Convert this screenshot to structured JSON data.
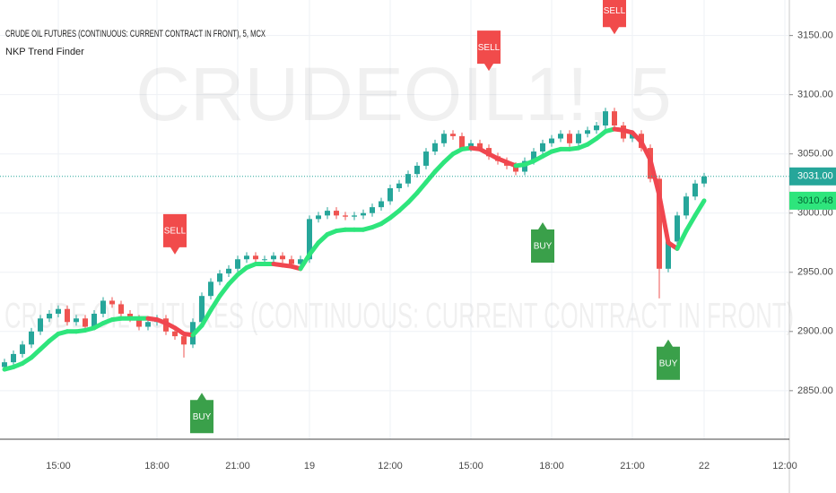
{
  "chart_data": {
    "type": "candlestick",
    "title": "CRUDE OIL FUTURES (CONTINUOUS: CURRENT CONTRACT IN FRONT), 5, MCX",
    "subtitle": "NKP Trend Finder",
    "watermark": "CRUDEOIL1!, 5",
    "watermark_subtitle": "CRUDE OIL FUTURES (CONTINUOUS: CURRENT CONTRACT IN FRONT)",
    "categories": [
      null,
      null,
      null,
      null,
      null,
      null,
      "15:00",
      null,
      null,
      null,
      null,
      null,
      null,
      null,
      null,
      null,
      null,
      "18:00",
      null,
      null,
      null,
      null,
      null,
      null,
      null,
      null,
      "21:00",
      null,
      null,
      null,
      null,
      null,
      null,
      null,
      "19",
      null,
      null,
      null,
      null,
      null,
      null,
      null,
      null,
      "12:00",
      null,
      null,
      null,
      null,
      null,
      null,
      null,
      null,
      "15:00",
      null,
      null,
      null,
      null,
      null,
      null,
      null,
      null,
      "18:00",
      null,
      null,
      null,
      null,
      null,
      null,
      null,
      null,
      "21:00",
      null,
      null,
      null,
      null,
      null,
      null,
      null,
      "22",
      null,
      null,
      null,
      null,
      null,
      null,
      null,
      null,
      "12:00",
      null
    ],
    "open": [
      2870,
      2874,
      2881,
      2889,
      2900,
      2911,
      2915,
      2919,
      2908,
      2911,
      2904,
      2915,
      2926,
      2923,
      2915,
      2911,
      2904,
      2908,
      2911,
      2900,
      2896,
      2889,
      2908,
      2930,
      2942,
      2949,
      2953,
      2961,
      2964,
      2961,
      2961,
      2964,
      2961,
      2957,
      2961,
      2995,
      2998,
      3002,
      2998,
      2997,
      2998,
      3000,
      3005,
      3010,
      3021,
      3025,
      3033,
      3040,
      3052,
      3059,
      3067,
      3065,
      3055,
      3059,
      3055,
      3048,
      3044,
      3040,
      3035,
      3044,
      3052,
      3059,
      3063,
      3067,
      3059,
      3067,
      3070,
      3074,
      3086,
      3074,
      3063,
      3067,
      3055,
      3029,
      2953,
      2976,
      2998,
      3014,
      3025,
      null,
      null,
      null,
      null,
      null,
      null,
      null,
      null,
      null,
      null
    ],
    "high": [
      2877,
      2884,
      2892,
      2903,
      2914,
      2918,
      2922,
      2922,
      2914,
      2914,
      2918,
      2929,
      2929,
      2926,
      2918,
      2914,
      2911,
      2914,
      2914,
      2903,
      2899,
      2911,
      2933,
      2945,
      2952,
      2956,
      2964,
      2967,
      2967,
      2964,
      2967,
      2967,
      2964,
      2964,
      2998,
      3001,
      3005,
      3005,
      3001,
      3001,
      3003,
      3008,
      3013,
      3024,
      3028,
      3036,
      3043,
      3055,
      3062,
      3070,
      3070,
      3068,
      3062,
      3062,
      3058,
      3051,
      3047,
      3043,
      3047,
      3055,
      3062,
      3066,
      3070,
      3070,
      3070,
      3073,
      3077,
      3089,
      3089,
      3077,
      3070,
      3070,
      3058,
      3032,
      2979,
      3001,
      3017,
      3028,
      3034,
      null,
      null,
      null,
      null,
      null,
      null,
      null,
      null,
      null,
      null
    ],
    "low": [
      2867,
      2871,
      2878,
      2886,
      2897,
      2908,
      2912,
      2905,
      2905,
      2901,
      2901,
      2912,
      2920,
      2912,
      2908,
      2901,
      2901,
      2905,
      2897,
      2893,
      2878,
      2886,
      2905,
      2927,
      2939,
      2946,
      2950,
      2958,
      2958,
      2958,
      2958,
      2958,
      2954,
      2954,
      2958,
      2992,
      2995,
      2995,
      2994,
      2994,
      2995,
      2997,
      3002,
      3007,
      3018,
      3022,
      3030,
      3037,
      3049,
      3056,
      3062,
      3052,
      3052,
      3052,
      3045,
      3041,
      3037,
      3032,
      3032,
      3041,
      3049,
      3056,
      3060,
      3056,
      3056,
      3064,
      3067,
      3071,
      3071,
      3060,
      3060,
      3052,
      3026,
      2928,
      2950,
      2973,
      2995,
      3011,
      3022,
      null,
      null,
      null,
      null,
      null,
      null,
      null,
      null,
      null,
      null
    ],
    "close": [
      2874,
      2881,
      2889,
      2900,
      2911,
      2915,
      2919,
      2908,
      2911,
      2904,
      2915,
      2926,
      2923,
      2915,
      2911,
      2904,
      2908,
      2911,
      2900,
      2896,
      2889,
      2908,
      2930,
      2942,
      2949,
      2953,
      2961,
      2964,
      2961,
      2961,
      2964,
      2961,
      2957,
      2961,
      2995,
      2998,
      3002,
      2998,
      2997,
      2998,
      3000,
      3005,
      3010,
      3021,
      3025,
      3033,
      3040,
      3052,
      3059,
      3067,
      3065,
      3055,
      3059,
      3055,
      3048,
      3044,
      3040,
      3035,
      3044,
      3052,
      3059,
      3063,
      3067,
      3059,
      3067,
      3070,
      3074,
      3086,
      3074,
      3063,
      3067,
      3055,
      3029,
      2953,
      2976,
      2998,
      3014,
      3025,
      3031,
      null,
      null,
      null,
      null,
      null,
      null,
      null,
      null,
      null,
      null
    ],
    "trend": [
      2868,
      2870,
      2873,
      2878,
      2885,
      2892,
      2898,
      2900,
      2900,
      2901,
      2903,
      2907,
      2910,
      2911,
      2911,
      2911,
      2911,
      2910,
      2907,
      2903,
      2898,
      2897,
      2905,
      2918,
      2930,
      2940,
      2948,
      2954,
      2957,
      2957,
      2957,
      2956,
      2955,
      2953,
      2965,
      2975,
      2982,
      2985,
      2986,
      2986,
      2986,
      2988,
      2991,
      2996,
      3002,
      3009,
      3017,
      3026,
      3035,
      3043,
      3050,
      3054,
      3055,
      3054,
      3050,
      3046,
      3043,
      3040,
      3041,
      3044,
      3048,
      3052,
      3054,
      3054,
      3055,
      3058,
      3063,
      3069,
      3071,
      3070,
      3068,
      3060,
      3045,
      3015,
      2975,
      2970,
      2985,
      2998,
      3010.48,
      null,
      null,
      null,
      null,
      null,
      null,
      null,
      null,
      null,
      null
    ],
    "signals": [
      null,
      null,
      null,
      null,
      null,
      null,
      null,
      null,
      null,
      null,
      null,
      null,
      null,
      null,
      null,
      null,
      null,
      null,
      null,
      "SELL",
      null,
      null,
      "BUY",
      null,
      null,
      null,
      null,
      null,
      null,
      null,
      null,
      null,
      null,
      null,
      null,
      null,
      null,
      null,
      null,
      null,
      null,
      null,
      null,
      null,
      null,
      null,
      null,
      null,
      null,
      null,
      null,
      null,
      null,
      null,
      "SELL",
      null,
      null,
      null,
      null,
      null,
      "BUY",
      null,
      null,
      null,
      null,
      null,
      null,
      null,
      "SELL",
      null,
      null,
      null,
      null,
      null,
      "BUY",
      null,
      null,
      null,
      null,
      null,
      null,
      null,
      null,
      null,
      null,
      null,
      null,
      null,
      null
    ],
    "up_color": "#26a69a",
    "down_color": "#ef5350",
    "trend_up_color": "#2ee57c",
    "trend_down_color": "#f0464f",
    "buy_color": "#3aa04a",
    "sell_color": "#f14b4b",
    "last_price": {
      "value": 3031,
      "label": "3031.00"
    },
    "ylim": [
      2809,
      3180
    ],
    "yticks": [
      {
        "value": 2850,
        "label": "2850.00"
      },
      {
        "value": 2900,
        "label": "2900.00"
      },
      {
        "value": 2950,
        "label": "2950.00"
      },
      {
        "value": 3000,
        "label": "3000.00"
      },
      {
        "value": 3050,
        "label": "3050.00"
      },
      {
        "value": 3100,
        "label": "3100.00"
      },
      {
        "value": 3150,
        "label": "3150.00"
      }
    ],
    "grid": true
  }
}
